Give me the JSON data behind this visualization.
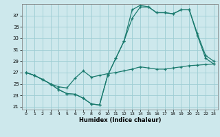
{
  "xlabel": "Humidex (Indice chaleur)",
  "bg_color": "#cde8ec",
  "grid_color": "#9ecdd4",
  "line_color": "#1a7a6e",
  "xlim": [
    -0.5,
    23.5
  ],
  "ylim": [
    20.5,
    39.0
  ],
  "yticks": [
    21,
    23,
    25,
    27,
    29,
    31,
    33,
    35,
    37
  ],
  "xticks": [
    0,
    1,
    2,
    3,
    4,
    5,
    6,
    7,
    8,
    9,
    10,
    11,
    12,
    13,
    14,
    15,
    16,
    17,
    18,
    19,
    20,
    21,
    22,
    23
  ],
  "series1_x": [
    0,
    1,
    2,
    3,
    4,
    5,
    6,
    7,
    8,
    9,
    10,
    11,
    12,
    13,
    14,
    15,
    16,
    17,
    18,
    19,
    20,
    21,
    22,
    23
  ],
  "series1_y": [
    27.0,
    26.5,
    25.8,
    25.0,
    24.5,
    24.3,
    26.0,
    27.3,
    26.2,
    26.5,
    26.8,
    27.0,
    27.3,
    27.6,
    28.0,
    27.8,
    27.6,
    27.6,
    27.8,
    28.0,
    28.2,
    28.3,
    28.4,
    28.5
  ],
  "series2_x": [
    0,
    1,
    2,
    3,
    4,
    5,
    6,
    7,
    8,
    9,
    10,
    11,
    12,
    13,
    14,
    15,
    16,
    17,
    18,
    19,
    20,
    21,
    22,
    23
  ],
  "series2_y": [
    27.0,
    26.5,
    25.8,
    25.0,
    24.0,
    23.3,
    23.2,
    22.5,
    21.5,
    21.3,
    26.5,
    29.5,
    32.5,
    36.5,
    38.5,
    38.5,
    37.5,
    37.5,
    37.3,
    38.0,
    38.0,
    33.8,
    30.0,
    29.0
  ],
  "series3_x": [
    0,
    1,
    2,
    3,
    4,
    5,
    6,
    7,
    8,
    9,
    10,
    11,
    12,
    13,
    14,
    15,
    16,
    17,
    18,
    19,
    20,
    21,
    22,
    23
  ],
  "series3_y": [
    27.0,
    26.5,
    25.8,
    25.0,
    24.0,
    23.3,
    23.2,
    22.5,
    21.5,
    21.3,
    26.5,
    29.5,
    32.5,
    38.0,
    38.8,
    38.5,
    37.5,
    37.5,
    37.3,
    38.0,
    38.0,
    33.5,
    29.5,
    28.5
  ]
}
